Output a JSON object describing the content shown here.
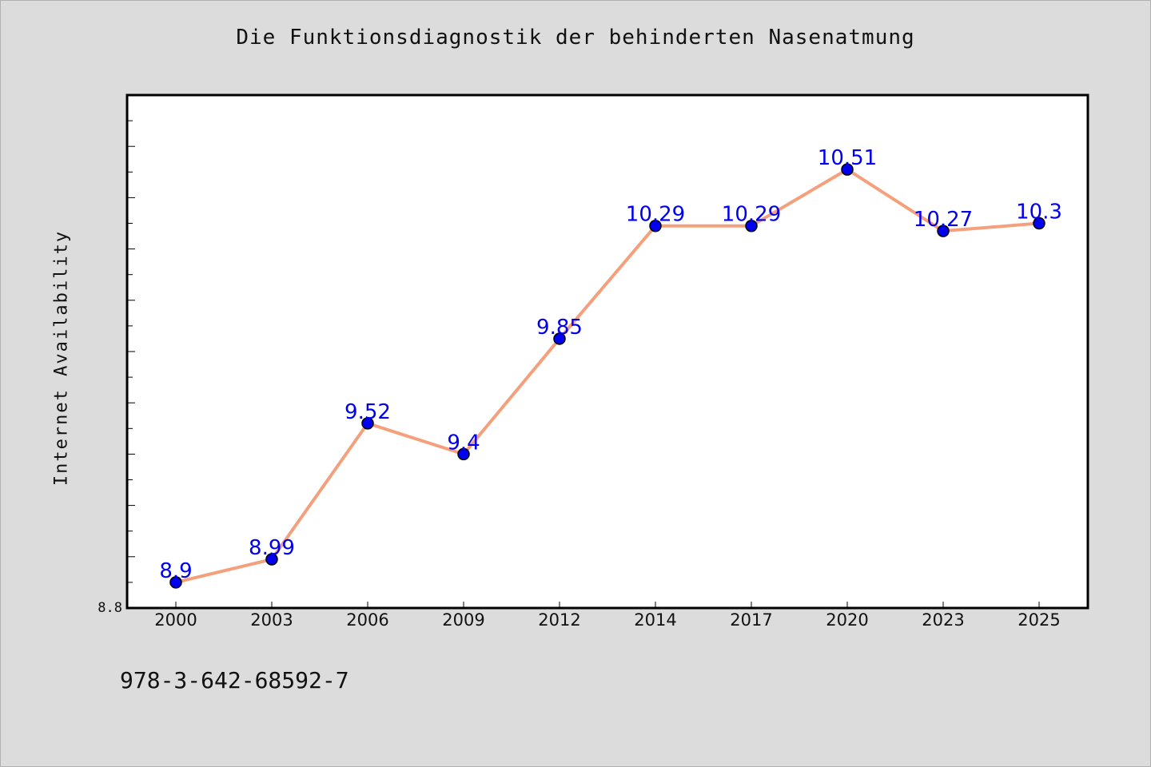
{
  "title": "Die Funktionsdiagnostik der behinderten Nasenatmung",
  "footer_text": "978-3-642-68592-7",
  "chart_data": {
    "type": "line",
    "title": "Die Funktionsdiagnostik der behinderten Nasenatmung",
    "xlabel": "",
    "ylabel": "Internet Availability",
    "categories": [
      "2000",
      "2003",
      "2006",
      "2009",
      "2012",
      "2014",
      "2017",
      "2020",
      "2023",
      "2025"
    ],
    "series": [
      {
        "values": [
          8.9,
          8.99,
          9.52,
          9.4,
          9.85,
          10.29,
          10.29,
          10.51,
          10.27,
          10.3
        ]
      }
    ],
    "data_labels": [
      "8.9",
      "8.99",
      "9.52",
      "9.4",
      "9.85",
      "10.29",
      "10.29",
      "10.51",
      "10.27",
      "10.3"
    ],
    "ylim": [
      8.8,
      10.8
    ],
    "y_tick_labels": [
      "8.8"
    ],
    "line_color": "#f4a07c",
    "marker_color": "#0000ee",
    "label_color": "#0000ee",
    "background_color": "#dcdcdc",
    "plot_background": "#ffffff",
    "grid": false,
    "legend": "none"
  }
}
